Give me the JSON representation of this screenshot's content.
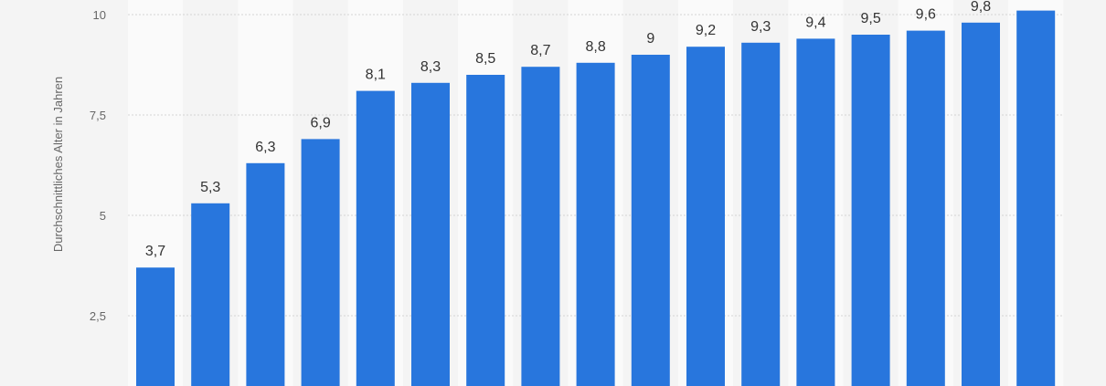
{
  "chart_data": {
    "type": "bar",
    "ylabel": "Durchschnittliches Alter in Jahren",
    "y_ticks": [
      2.5,
      5,
      7.5,
      10
    ],
    "y_tick_labels": [
      "2,5",
      "5",
      "7,5",
      "10"
    ],
    "values": [
      3.7,
      5.3,
      6.3,
      6.9,
      8.1,
      8.3,
      8.5,
      8.7,
      8.8,
      9,
      9.2,
      9.3,
      9.4,
      9.5,
      9.6,
      9.8,
      10.1
    ],
    "value_labels": [
      "3,7",
      "5,3",
      "6,3",
      "6,9",
      "8,1",
      "8,3",
      "8,5",
      "8,7",
      "8,8",
      "9",
      "9,2",
      "9,3",
      "9,4",
      "9,5",
      "9,6",
      "9,8",
      ""
    ],
    "grid": true,
    "colors": {
      "bar": "#2876dd",
      "background": "#f4f4f4",
      "band": "#fafafa",
      "grid": "#d4d4d4"
    }
  }
}
